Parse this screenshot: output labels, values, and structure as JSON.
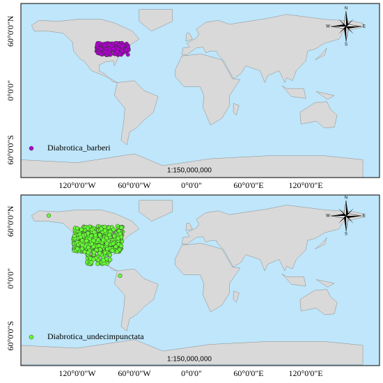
{
  "panels": [
    {
      "legend": "Diabrotica_barberi",
      "scale": "1:150,000,000"
    },
    {
      "legend": "Diabrotica_undecimpunctata",
      "scale": "1:150,000,000"
    }
  ],
  "latitude_labels": [
    "60°0'0\"N",
    "0°0'0\"",
    "60°0'0\"S"
  ],
  "longitude_labels": [
    "120°0'0\"W",
    "60°0'0\"W",
    "0°0'0\"",
    "60°0'0\"E",
    "120°0'0\"E"
  ],
  "compass": {
    "north": "N",
    "south": "S",
    "east": "E",
    "west": "W"
  }
}
